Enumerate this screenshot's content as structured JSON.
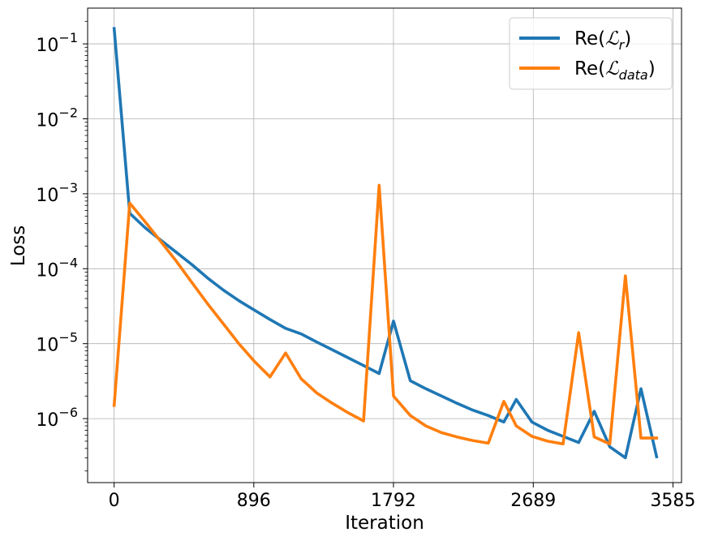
{
  "chart_data": {
    "type": "line",
    "xlabel": "Iteration",
    "ylabel": "Loss",
    "xlim": [
      -170,
      3640
    ],
    "ylim": [
      1.4e-07,
      0.3
    ],
    "yscale": "log",
    "grid": true,
    "legend_position": "top-right",
    "xticks": [
      0,
      896,
      1792,
      2689,
      3585
    ],
    "yticks": [
      {
        "value": 1e-06,
        "base": "10",
        "exp": "−6"
      },
      {
        "value": 1e-05,
        "base": "10",
        "exp": "−5"
      },
      {
        "value": 0.0001,
        "base": "10",
        "exp": "−4"
      },
      {
        "value": 0.001,
        "base": "10",
        "exp": "−3"
      },
      {
        "value": 0.01,
        "base": "10",
        "exp": "−2"
      },
      {
        "value": 0.1,
        "base": "10",
        "exp": "−1"
      }
    ],
    "series": [
      {
        "name_prefix": "Re(",
        "name_script": "ℒ",
        "name_sub": "r",
        "name_suffix": ")",
        "color": "#1f77b4",
        "x": [
          0,
          100,
          200,
          300,
          400,
          500,
          600,
          700,
          800,
          900,
          1000,
          1100,
          1200,
          1300,
          1400,
          1500,
          1600,
          1700,
          1792,
          1900,
          2000,
          2100,
          2200,
          2300,
          2400,
          2500,
          2580,
          2680,
          2780,
          2880,
          2980,
          3080,
          3180,
          3280,
          3380,
          3480
        ],
        "y": [
          0.16,
          0.00055,
          0.00035,
          0.00024,
          0.000165,
          0.000113,
          7.5e-05,
          5.2e-05,
          3.75e-05,
          2.8e-05,
          2.1e-05,
          1.6e-05,
          1.35e-05,
          1.05e-05,
          8.3e-06,
          6.5e-06,
          5.1e-06,
          4e-06,
          2e-05,
          3.2e-06,
          2.5e-06,
          2e-06,
          1.6e-06,
          1.3e-06,
          1.1e-06,
          9e-07,
          1.8e-06,
          9e-07,
          7e-07,
          5.8e-07,
          4.8e-07,
          1.25e-06,
          4.2e-07,
          3e-07,
          2.5e-06,
          3.1e-07
        ]
      },
      {
        "name_prefix": "Re(",
        "name_script": "ℒ",
        "name_sub": "data",
        "name_suffix": ")",
        "color": "#ff7f0e",
        "x": [
          0,
          100,
          200,
          300,
          400,
          500,
          600,
          700,
          800,
          900,
          1000,
          1100,
          1200,
          1300,
          1400,
          1500,
          1600,
          1700,
          1792,
          1900,
          2000,
          2100,
          2200,
          2300,
          2400,
          2500,
          2580,
          2680,
          2780,
          2880,
          2980,
          3080,
          3180,
          3280,
          3380,
          3480
        ],
        "y": [
          1.5e-06,
          0.00075,
          0.00042,
          0.00023,
          0.000125,
          6.5e-05,
          3.4e-05,
          1.85e-05,
          1e-05,
          5.8e-06,
          3.6e-06,
          7.5e-06,
          3.4e-06,
          2.2e-06,
          1.6e-06,
          1.2e-06,
          9.3e-07,
          0.0013,
          2e-06,
          1.1e-06,
          8e-07,
          6.5e-07,
          5.7e-07,
          5.1e-07,
          4.7e-07,
          1.7e-06,
          8e-07,
          5.8e-07,
          5e-07,
          4.6e-07,
          1.4e-05,
          5.7e-07,
          4.6e-07,
          8e-05,
          5.5e-07,
          5.5e-07
        ]
      }
    ]
  }
}
